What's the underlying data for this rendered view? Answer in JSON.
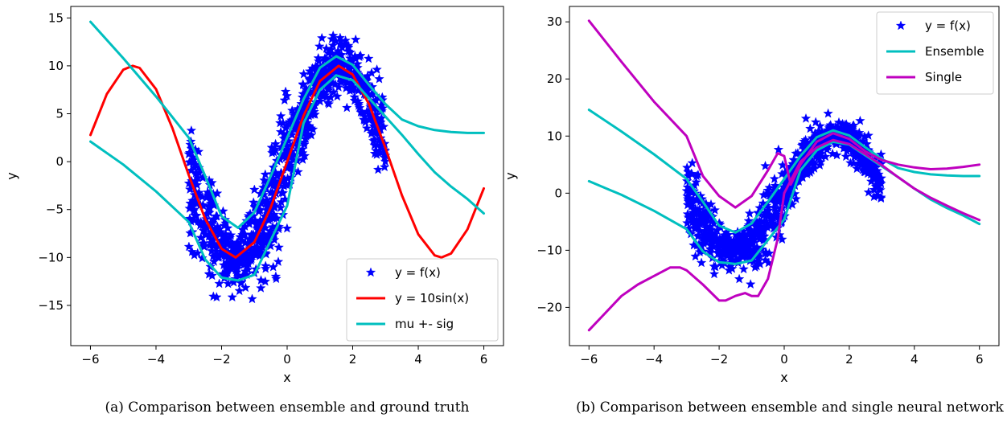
{
  "chart_data": [
    {
      "type": "line",
      "caption": "(a) Comparison between ensemble and ground truth",
      "xlabel": "x",
      "ylabel": "y",
      "xlim": [
        -6.6,
        6.6
      ],
      "ylim": [
        -19.2,
        16.2
      ],
      "xticks": [
        -6,
        -4,
        -2,
        0,
        2,
        4,
        6
      ],
      "yticks": [
        -15,
        -10,
        -5,
        0,
        5,
        10,
        15
      ],
      "xtick_labels": [
        "−6",
        "−4",
        "−2",
        "0",
        "2",
        "4",
        "6"
      ],
      "ytick_labels": [
        "−15",
        "−10",
        "−5",
        "0",
        "5",
        "10",
        "15"
      ],
      "grid": false,
      "legend_position": "lower-right",
      "series": [
        {
          "name": "y = f(x)",
          "kind": "scatter",
          "marker": "star",
          "color": "#0000ff",
          "x_range": [
            -3,
            3
          ],
          "function": "10sin(x)",
          "noise": "heteroscedastic"
        },
        {
          "name": "y = 10sin(x)",
          "kind": "line",
          "color": "#ff0000",
          "x": [
            -6.0,
            -5.5,
            -5.0,
            -4.712,
            -4.5,
            -4.0,
            -3.5,
            -3.0,
            -2.5,
            -2.0,
            -1.571,
            -1.0,
            -0.5,
            0.0,
            0.5,
            1.0,
            1.571,
            2.0,
            2.5,
            3.0,
            3.5,
            4.0,
            4.5,
            4.712,
            5.0,
            5.5,
            6.0
          ],
          "y": [
            2.79,
            7.06,
            9.59,
            10.0,
            9.78,
            7.57,
            3.51,
            -1.41,
            -5.98,
            -9.09,
            -10.0,
            -8.41,
            -4.79,
            0.0,
            4.79,
            8.41,
            10.0,
            9.09,
            5.98,
            1.41,
            -3.51,
            -7.57,
            -9.78,
            -10.0,
            -9.59,
            -7.06,
            -2.79
          ]
        },
        {
          "name": "mu +- sig",
          "kind": "line",
          "color": "#00bfbf",
          "x": [
            -6.0,
            -5.0,
            -4.0,
            -3.0,
            -2.5,
            -2.0,
            -1.5,
            -1.0,
            -0.5,
            0.0,
            0.5,
            1.0,
            1.5,
            2.0,
            2.5,
            3.0,
            3.5,
            4.0,
            4.5,
            5.0,
            5.5,
            6.0
          ],
          "y": [
            14.6,
            10.8,
            6.8,
            2.5,
            -1.5,
            -5.7,
            -6.9,
            -5.3,
            -1.5,
            2.5,
            6.5,
            9.8,
            11.0,
            10.1,
            8.0,
            6.0,
            4.4,
            3.7,
            3.3,
            3.1,
            3.0,
            3.0
          ]
        },
        {
          "name": "",
          "kind": "line",
          "color": "#00bfbf",
          "x": [
            -6.0,
            -5.0,
            -4.0,
            -3.0,
            -2.5,
            -2.0,
            -1.5,
            -1.0,
            -0.5,
            0.0,
            0.5,
            1.0,
            1.5,
            2.0,
            2.5,
            3.0,
            3.5,
            4.0,
            4.5,
            5.0,
            5.5,
            6.0
          ],
          "y": [
            2.1,
            -0.3,
            -3.1,
            -6.3,
            -10.2,
            -12.1,
            -12.4,
            -11.8,
            -8.2,
            -4.6,
            4.0,
            7.5,
            9.0,
            8.5,
            6.6,
            4.7,
            2.8,
            0.8,
            -1.1,
            -2.6,
            -3.9,
            -5.4
          ]
        }
      ]
    },
    {
      "type": "line",
      "caption": "(b) Comparison between ensemble and single neural network",
      "xlabel": "x",
      "ylabel": "y",
      "xlim": [
        -6.6,
        6.6
      ],
      "ylim": [
        -26.7,
        32.7
      ],
      "xticks": [
        -6,
        -4,
        -2,
        0,
        2,
        4,
        6
      ],
      "yticks": [
        -20,
        -10,
        0,
        10,
        20,
        30
      ],
      "xtick_labels": [
        "−6",
        "−4",
        "−2",
        "0",
        "2",
        "4",
        "6"
      ],
      "ytick_labels": [
        "−20",
        "−10",
        "0",
        "10",
        "20",
        "30"
      ],
      "grid": false,
      "legend_position": "upper-right",
      "series": [
        {
          "name": "y = f(x)",
          "kind": "scatter",
          "marker": "star",
          "color": "#0000ff",
          "x_range": [
            -3,
            3
          ],
          "function": "10sin(x)",
          "noise": "heteroscedastic"
        },
        {
          "name": "Ensemble",
          "kind": "line",
          "color": "#00bfbf",
          "x": [
            -6.0,
            -5.0,
            -4.0,
            -3.0,
            -2.5,
            -2.0,
            -1.5,
            -1.0,
            -0.5,
            0.0,
            0.5,
            1.0,
            1.5,
            2.0,
            2.5,
            3.0,
            3.5,
            4.0,
            4.5,
            5.0,
            5.5,
            6.0
          ],
          "y": [
            14.6,
            10.8,
            6.8,
            2.5,
            -1.5,
            -5.7,
            -6.9,
            -5.3,
            -1.5,
            2.5,
            6.5,
            9.8,
            11.0,
            10.1,
            8.0,
            6.0,
            4.4,
            3.7,
            3.3,
            3.1,
            3.0,
            3.0
          ]
        },
        {
          "name": "",
          "kind": "line",
          "color": "#00bfbf",
          "x": [
            -6.0,
            -5.0,
            -4.0,
            -3.0,
            -2.5,
            -2.0,
            -1.5,
            -1.0,
            -0.5,
            0.0,
            0.5,
            1.0,
            1.5,
            2.0,
            2.5,
            3.0,
            3.5,
            4.0,
            4.5,
            5.0,
            5.5,
            6.0
          ],
          "y": [
            2.1,
            -0.3,
            -3.1,
            -6.3,
            -10.2,
            -12.1,
            -12.4,
            -11.8,
            -8.2,
            -4.6,
            4.0,
            7.5,
            9.0,
            8.5,
            6.6,
            4.7,
            2.8,
            0.8,
            -1.1,
            -2.6,
            -3.9,
            -5.4
          ]
        },
        {
          "name": "Single",
          "kind": "line",
          "color": "#bf00bf",
          "x": [
            -6.0,
            -5.0,
            -4.0,
            -3.0,
            -2.5,
            -2.0,
            -1.5,
            -1.0,
            -0.5,
            -0.2,
            0.0,
            0.2,
            0.5,
            1.0,
            1.5,
            2.0,
            2.5,
            3.0,
            3.5,
            4.0,
            4.5,
            5.0,
            5.5,
            6.0
          ],
          "y": [
            30.2,
            23.0,
            16.0,
            10.0,
            3.0,
            -0.5,
            -2.5,
            -0.5,
            4.0,
            7.0,
            6.5,
            1.5,
            5.0,
            9.0,
            10.5,
            9.5,
            7.3,
            5.8,
            5.0,
            4.5,
            4.2,
            4.3,
            4.6,
            5.0
          ]
        },
        {
          "name": "",
          "kind": "line",
          "color": "#bf00bf",
          "x": [
            -6.0,
            -5.5,
            -5.0,
            -4.5,
            -4.0,
            -3.5,
            -3.2,
            -3.0,
            -2.5,
            -2.0,
            -1.8,
            -1.5,
            -1.2,
            -1.0,
            -0.8,
            -0.5,
            -0.2,
            0.0,
            0.5,
            1.0,
            1.5,
            2.0,
            2.5,
            3.0,
            3.5,
            4.0,
            4.5,
            5.0,
            5.5,
            6.0
          ],
          "y": [
            -24.0,
            -21.0,
            -18.0,
            -16.0,
            -14.5,
            -13.0,
            -13.0,
            -13.5,
            -16.0,
            -18.8,
            -18.8,
            -18.0,
            -17.5,
            -18.0,
            -18.0,
            -15.0,
            -8.0,
            0.0,
            5.5,
            8.0,
            9.3,
            8.6,
            6.8,
            4.9,
            2.8,
            0.8,
            -0.8,
            -2.2,
            -3.5,
            -4.7
          ]
        }
      ]
    }
  ]
}
